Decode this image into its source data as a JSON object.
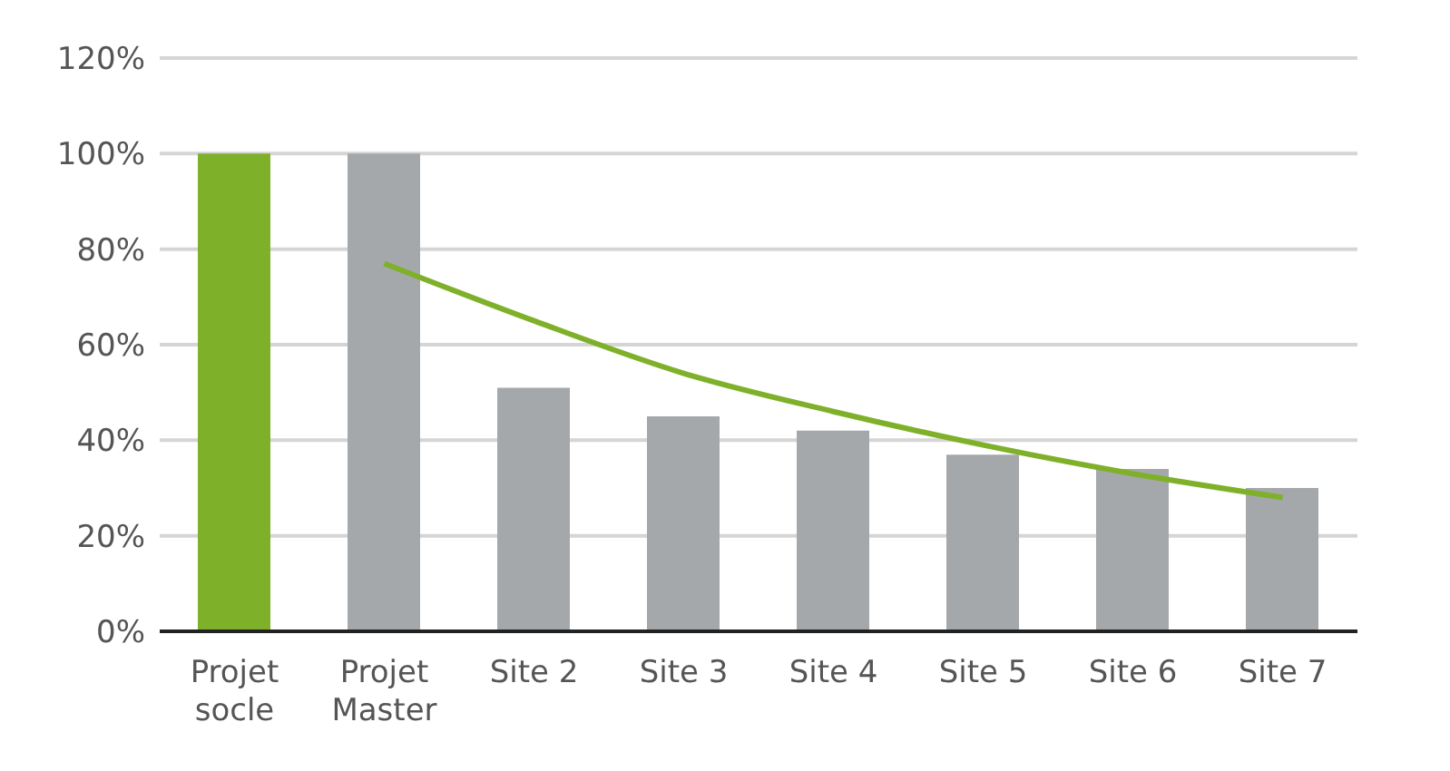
{
  "chart_data": {
    "type": "bar",
    "categories": [
      "Projet socle",
      "Projet Master",
      "Site 2",
      "Site 3",
      "Site 4",
      "Site 5",
      "Site 6",
      "Site 7"
    ],
    "series": [
      {
        "colors": [
          "#7fb02a",
          "#a5a8ab",
          "#a5a8ab",
          "#a5a8ab",
          "#a5a8ab",
          "#a5a8ab",
          "#a5a8ab",
          "#a5a8ab"
        ],
        "values": [
          100,
          100,
          51,
          45,
          42,
          37,
          34,
          30
        ]
      },
      {
        "type": "line",
        "color": "#7fb02a",
        "values": [
          null,
          77,
          65,
          54,
          46,
          39,
          33,
          28
        ]
      }
    ],
    "ylim": [
      0,
      120
    ],
    "yticks": [
      {
        "value": 0,
        "label": "0%"
      },
      {
        "value": 20,
        "label": "20%"
      },
      {
        "value": 40,
        "label": "40%"
      },
      {
        "value": 60,
        "label": "60%"
      },
      {
        "value": 80,
        "label": "80%"
      },
      {
        "value": 100,
        "label": "100%"
      },
      {
        "value": 120,
        "label": "120%"
      }
    ],
    "grid": "y",
    "legend": false,
    "marker": "none"
  }
}
